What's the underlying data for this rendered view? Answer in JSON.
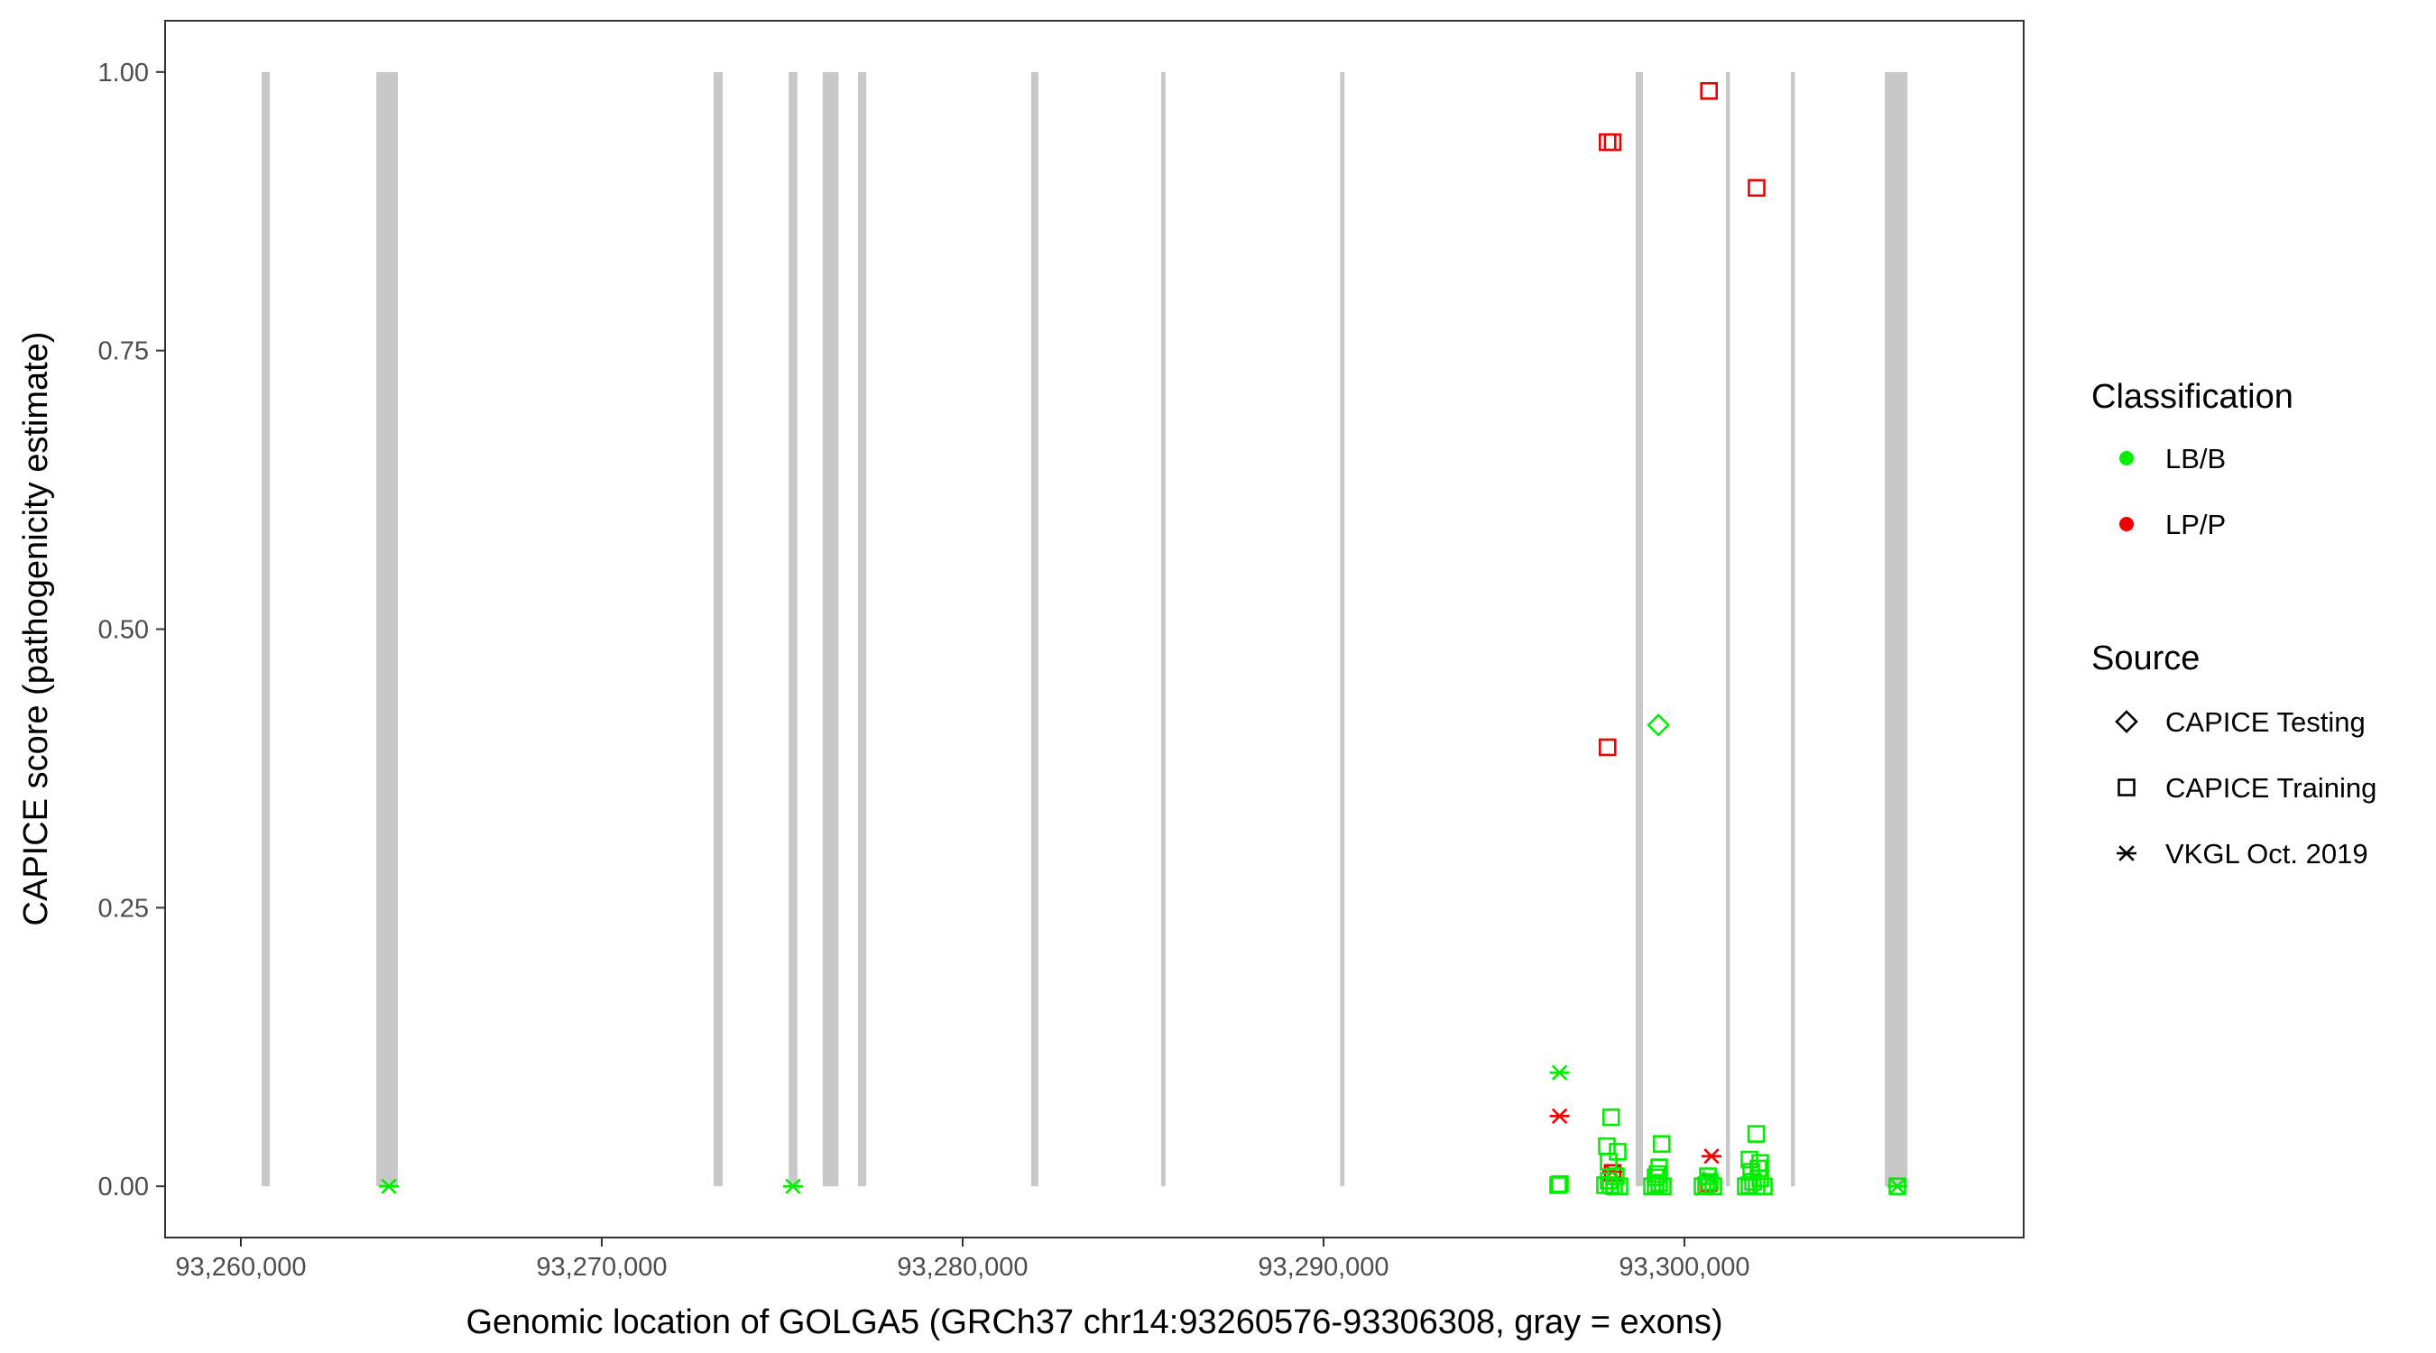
{
  "chart_data": {
    "type": "scatter",
    "title": "",
    "xlabel": "Genomic location of GOLGA5 (GRCh37 chr14:93260576-93306308, gray = exons)",
    "ylabel": "CAPICE score (pathogenicity estimate)",
    "xlim": [
      93257900,
      93309400
    ],
    "ylim": [
      -0.046,
      1.046
    ],
    "x_ticks": [
      93260000,
      93270000,
      93280000,
      93290000,
      93300000
    ],
    "x_tick_labels": [
      "93,260,000",
      "93,270,000",
      "93,280,000",
      "93,290,000",
      "93,300,000"
    ],
    "y_ticks": [
      0,
      0.25,
      0.5,
      0.75,
      1.0
    ],
    "y_tick_labels": [
      "0.00",
      "0.25",
      "0.50",
      "0.75",
      "1.00"
    ],
    "grid": false,
    "exons": [
      [
        93260576,
        93260800
      ],
      [
        93263750,
        93264350
      ],
      [
        93273100,
        93273350
      ],
      [
        93275180,
        93275420
      ],
      [
        93276120,
        93276560
      ],
      [
        93277100,
        93277330
      ],
      [
        93281900,
        93282100
      ],
      [
        93285500,
        93285620
      ],
      [
        93290460,
        93290580
      ],
      [
        93298650,
        93298850
      ],
      [
        93301150,
        93301260
      ],
      [
        93302950,
        93303060
      ],
      [
        93305550,
        93306180
      ]
    ],
    "legend": {
      "position": "right",
      "classification_title": "Classification",
      "classification": [
        {
          "label": "LB/B",
          "color": "#00ee00"
        },
        {
          "label": "LP/P",
          "color": "#ee0000"
        }
      ],
      "source_title": "Source",
      "source": [
        {
          "label": "CAPICE Testing",
          "shape": "diamond"
        },
        {
          "label": "CAPICE Training",
          "shape": "square"
        },
        {
          "label": "VKGL Oct. 2019",
          "shape": "asterisk"
        }
      ]
    },
    "series": [
      {
        "name": "LP/P CAPICE Training",
        "classification": "LP/P",
        "source": "CAPICE Training",
        "points": [
          [
            93297870,
            0.937
          ],
          [
            93298010,
            0.937
          ],
          [
            93300680,
            0.983
          ],
          [
            93302000,
            0.896
          ],
          [
            93297870,
            0.394
          ],
          [
            93298010,
            0.012
          ],
          [
            93300680,
            0.003
          ]
        ]
      },
      {
        "name": "LP/P VKGL Oct. 2019",
        "classification": "LP/P",
        "source": "VKGL Oct. 2019",
        "points": [
          [
            93296540,
            0.063
          ],
          [
            93300750,
            0.027
          ],
          [
            93298000,
            0.013
          ]
        ]
      },
      {
        "name": "LB/B CAPICE Testing",
        "classification": "LB/B",
        "source": "CAPICE Testing",
        "points": [
          [
            93299280,
            0.414
          ]
        ]
      },
      {
        "name": "LB/B CAPICE Training",
        "classification": "LB/B",
        "source": "CAPICE Training",
        "points": [
          [
            93297970,
            0.062
          ],
          [
            93299370,
            0.038
          ],
          [
            93301990,
            0.047
          ],
          [
            93297850,
            0.036
          ],
          [
            93298150,
            0.031
          ],
          [
            93297900,
            0.022
          ],
          [
            93299300,
            0.017
          ],
          [
            93301800,
            0.024
          ],
          [
            93302100,
            0.021
          ],
          [
            93299200,
            0.008
          ],
          [
            93296550,
            0.002
          ],
          [
            93296500,
            0.001
          ],
          [
            93297800,
            0.001
          ],
          [
            93297950,
            0.001
          ],
          [
            93298050,
            0.0
          ],
          [
            93298200,
            0.0
          ],
          [
            93297900,
            0.005
          ],
          [
            93298100,
            0.009
          ],
          [
            93299100,
            0.0
          ],
          [
            93299200,
            0.001
          ],
          [
            93299300,
            0.003
          ],
          [
            93299400,
            0.0
          ],
          [
            93299250,
            0.011
          ],
          [
            93300500,
            0.0
          ],
          [
            93300600,
            0.001
          ],
          [
            93300700,
            0.004
          ],
          [
            93300800,
            0.0
          ],
          [
            93300650,
            0.009
          ],
          [
            93301700,
            0.0
          ],
          [
            93301800,
            0.001
          ],
          [
            93301900,
            0.004
          ],
          [
            93302000,
            0.0
          ],
          [
            93302100,
            0.007
          ],
          [
            93302200,
            0.0
          ],
          [
            93301850,
            0.013
          ],
          [
            93302050,
            0.016
          ],
          [
            93305900,
            0.0
          ]
        ]
      },
      {
        "name": "LB/B VKGL Oct. 2019",
        "classification": "LB/B",
        "source": "VKGL Oct. 2019",
        "points": [
          [
            93296540,
            0.102
          ],
          [
            93264100,
            0.0
          ],
          [
            93275300,
            0.0
          ],
          [
            93305900,
            0.0
          ],
          [
            93300700,
            0.007
          ]
        ]
      }
    ]
  }
}
